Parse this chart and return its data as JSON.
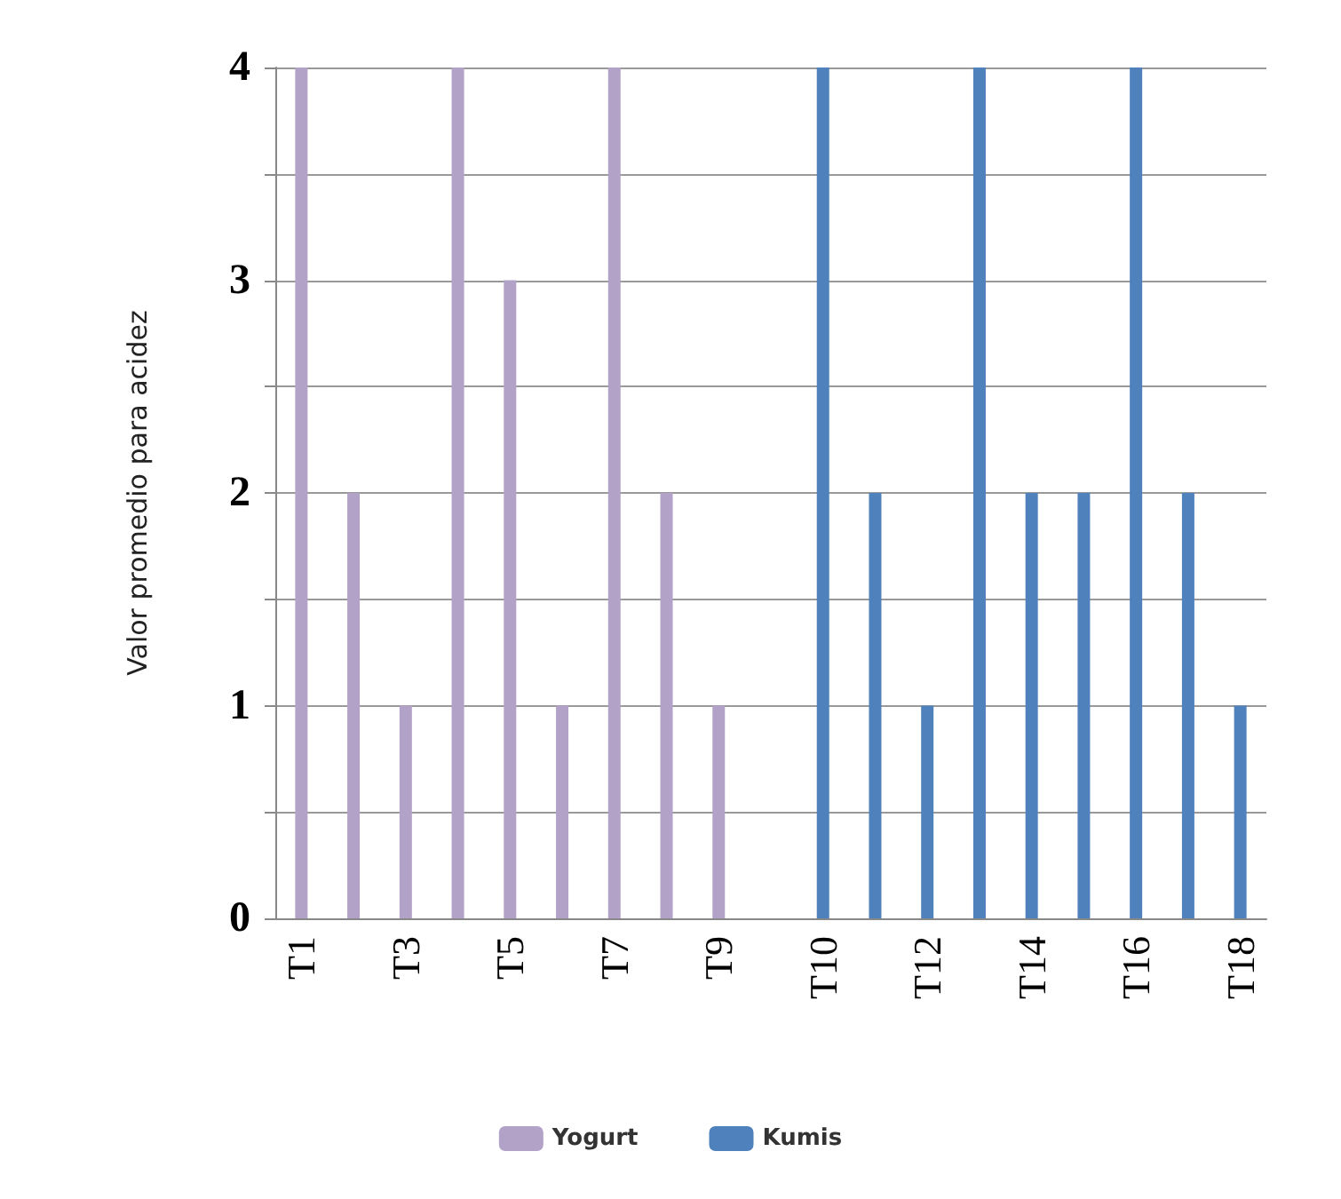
{
  "chart_data": {
    "type": "bar",
    "ylabel": "Valor promedio para acidez",
    "categories": [
      "T1",
      null,
      "T3",
      null,
      "T5",
      null,
      "T7",
      null,
      "T9",
      null,
      "T10",
      null,
      "T12",
      null,
      "T14",
      null,
      "T16",
      null,
      "T18"
    ],
    "series": [
      {
        "name": "Yogurt",
        "color": "#b3a2c7",
        "values": [
          4,
          2,
          1,
          4,
          3,
          1,
          4,
          2,
          1,
          null,
          null,
          null,
          null,
          null,
          null,
          null,
          null,
          null,
          null
        ]
      },
      {
        "name": "Kumis",
        "color": "#4f81bd",
        "values": [
          null,
          null,
          null,
          null,
          null,
          null,
          null,
          null,
          null,
          null,
          4,
          2,
          1,
          4,
          2,
          2,
          4,
          2,
          1
        ]
      }
    ],
    "ylim": [
      0,
      4
    ],
    "yticks": [
      0,
      {
        "value": 0.5,
        "label": null
      },
      1,
      {
        "value": 1.5,
        "label": null
      },
      2,
      {
        "value": 2.5,
        "label": null
      },
      3,
      {
        "value": 3.5,
        "label": null
      },
      4
    ],
    "grid": true,
    "legend": "bottom"
  }
}
